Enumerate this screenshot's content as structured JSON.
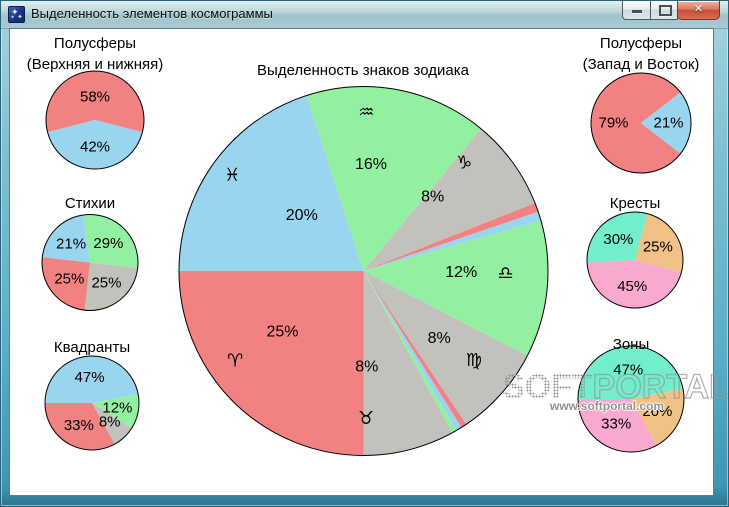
{
  "window": {
    "title": "Выделенность элементов космограммы",
    "controls": {
      "close_glyph": "✕"
    }
  },
  "colors": {
    "red": "#F28282",
    "blue": "#9AD5F0",
    "green": "#92F0A0",
    "gray": "#C3C1BC",
    "teal": "#72EECC",
    "tan": "#F0C285",
    "pink": "#F9A9CF"
  },
  "chart_data": [
    {
      "id": "zodiac",
      "type": "pie",
      "title": "Выделенность знаков зодиака",
      "start_angle": 270,
      "slices": [
        {
          "name": "pisces",
          "value": 20,
          "color": "blue",
          "label": "20%",
          "symbol": "♓",
          "label_a": 312,
          "label_r": 0.45,
          "sym_a": 306,
          "sym_r": 0.88
        },
        {
          "name": "aquarius",
          "value": 16,
          "color": "green",
          "label": "16%",
          "symbol": "♒",
          "label_a": 4,
          "label_r": 0.58,
          "sym_a": 1,
          "sym_r": 0.86
        },
        {
          "name": "capricorn",
          "value": 8,
          "color": "gray",
          "label": "8%",
          "symbol": "♑",
          "label_a": 43,
          "label_r": 0.55,
          "sym_a": 43,
          "sym_r": 0.8
        },
        {
          "name": "sagittarius",
          "value": 0.8,
          "color": "red"
        },
        {
          "name": "scorpio",
          "value": 0.8,
          "color": "blue"
        },
        {
          "name": "libra",
          "value": 12,
          "color": "green",
          "label": "12%",
          "symbol": "♎",
          "label_a": 91,
          "label_r": 0.53,
          "sym_a": 91,
          "sym_r": 0.77
        },
        {
          "name": "virgo",
          "value": 8,
          "color": "gray",
          "label": "8%",
          "symbol": "♍",
          "sym_a": 129,
          "sym_r": 0.77
        },
        {
          "name": "leo",
          "value": 0.5,
          "color": "red"
        },
        {
          "name": "cancer",
          "value": 0.5,
          "color": "blue"
        },
        {
          "name": "gemini",
          "value": 0.4,
          "color": "green"
        },
        {
          "name": "taurus",
          "value": 8,
          "color": "gray",
          "label": "8%",
          "symbol": "♉",
          "label_a": 178,
          "label_r": 0.52,
          "sym_a": 179,
          "sym_r": 0.8
        },
        {
          "name": "aries",
          "value": 25,
          "color": "red",
          "label": "25%",
          "symbol": "♈",
          "label_a": 233,
          "label_r": 0.55,
          "sym_a": 235,
          "sym_r": 0.85
        }
      ]
    },
    {
      "id": "hemi-vertical",
      "type": "pie",
      "title": "Полусферы",
      "title2": "(Верхняя и нижняя)",
      "start_angle": 255.6,
      "slices": [
        {
          "value": 58,
          "color": "red",
          "label": "58%",
          "label_r": 0.47
        },
        {
          "value": 42,
          "color": "blue",
          "label": "42%",
          "label_r": 0.55
        }
      ]
    },
    {
      "id": "elements",
      "type": "pie",
      "title": "Стихии",
      "start_angle": -8,
      "slices": [
        {
          "value": 29,
          "color": "green",
          "label": "29%"
        },
        {
          "value": 25,
          "color": "gray",
          "label": "25%"
        },
        {
          "value": 25,
          "color": "red",
          "label": "25%"
        },
        {
          "value": 21,
          "color": "blue",
          "label": "21%"
        }
      ]
    },
    {
      "id": "quadrants",
      "type": "pie",
      "title": "Квадранты",
      "start_angle": 270,
      "slices": [
        {
          "value": 47,
          "color": "blue",
          "label": "47%"
        },
        {
          "value": 12,
          "color": "green",
          "label": "12%"
        },
        {
          "value": 8,
          "color": "gray",
          "label": "8%"
        },
        {
          "value": 33,
          "color": "red",
          "label": "33%"
        }
      ]
    },
    {
      "id": "hemi-horizontal",
      "type": "pie",
      "title": "Полусферы",
      "title2": "(Запад и Восток)",
      "start_angle": 127.8,
      "slices": [
        {
          "value": 79,
          "color": "red",
          "label": "79%",
          "label_r": 0.55
        },
        {
          "value": 21,
          "color": "blue",
          "label": "21%",
          "label_r": 0.55
        }
      ]
    },
    {
      "id": "crosses",
      "type": "pie",
      "title": "Кресты",
      "start_angle": 15,
      "slices": [
        {
          "value": 25,
          "color": "tan",
          "label": "25%"
        },
        {
          "value": 45,
          "color": "pink",
          "label": "45%"
        },
        {
          "value": 30,
          "color": "teal",
          "label": "30%"
        }
      ]
    },
    {
      "id": "zones",
      "type": "pie",
      "title": "Зоны",
      "start_angle": 270,
      "slices": [
        {
          "value": 47,
          "color": "teal",
          "label": "47%"
        },
        {
          "value": 20,
          "color": "tan",
          "label": "20%"
        },
        {
          "value": 33,
          "color": "pink",
          "label": "33%"
        }
      ]
    }
  ],
  "watermark": {
    "text_soft": "SOFT",
    "text_portal": "PORTAL",
    "url": "www.softportal.com"
  }
}
